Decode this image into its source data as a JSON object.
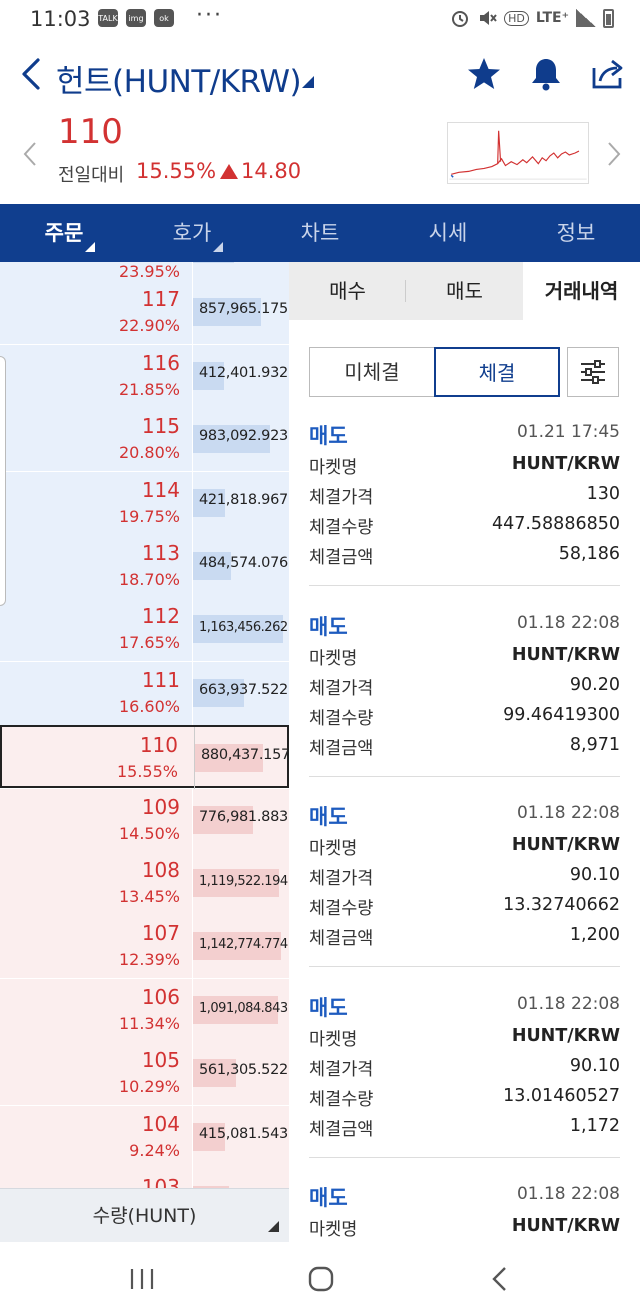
{
  "status_bar": {
    "time": "11:03",
    "app_icons": [
      "TALK",
      "img",
      "ok"
    ],
    "more": "···",
    "network": "LTE⁺",
    "hd": "HD"
  },
  "header": {
    "title": "헌트(HUNT/KRW)",
    "icons": [
      "back-icon",
      "star-icon",
      "bell-icon",
      "share-icon"
    ]
  },
  "price_summary": {
    "price": "110",
    "prev_label": "전일대비",
    "change_pct": "15.55%",
    "change_abs": "14.80"
  },
  "tabs": [
    {
      "label": "주문",
      "active": true
    },
    {
      "label": "호가",
      "active": false
    },
    {
      "label": "차트",
      "active": false
    },
    {
      "label": "시세",
      "active": false
    },
    {
      "label": "정보",
      "active": false
    }
  ],
  "orderbook": {
    "rows": [
      {
        "price": "",
        "pct": "23.95%",
        "qty": "",
        "bar": 0.45,
        "side": "ask",
        "partial": true
      },
      {
        "price": "117",
        "pct": "22.90%",
        "qty": "857,965.175",
        "bar": 0.75,
        "side": "ask"
      },
      {
        "price": "116",
        "pct": "21.85%",
        "qty": "412,401.932",
        "bar": 0.35,
        "side": "ask"
      },
      {
        "price": "115",
        "pct": "20.80%",
        "qty": "983,092.923",
        "bar": 0.86,
        "side": "ask"
      },
      {
        "price": "114",
        "pct": "19.75%",
        "qty": "421,818.967",
        "bar": 0.36,
        "side": "ask"
      },
      {
        "price": "113",
        "pct": "18.70%",
        "qty": "484,574.076",
        "bar": 0.42,
        "side": "ask"
      },
      {
        "price": "112",
        "pct": "17.65%",
        "qty": "1,163,456.262",
        "bar": 1.0,
        "side": "ask"
      },
      {
        "price": "111",
        "pct": "16.60%",
        "qty": "663,937.522",
        "bar": 0.57,
        "side": "ask"
      },
      {
        "price": "110",
        "pct": "15.55%",
        "qty": "880,437.157",
        "bar": 0.76,
        "side": "bid",
        "current": true
      },
      {
        "price": "109",
        "pct": "14.50%",
        "qty": "776,981.883",
        "bar": 0.67,
        "side": "bid"
      },
      {
        "price": "108",
        "pct": "13.45%",
        "qty": "1,119,522.194",
        "bar": 0.96,
        "side": "bid"
      },
      {
        "price": "107",
        "pct": "12.39%",
        "qty": "1,142,774.774",
        "bar": 0.98,
        "side": "bid"
      },
      {
        "price": "106",
        "pct": "11.34%",
        "qty": "1,091,084.843",
        "bar": 0.94,
        "side": "bid"
      },
      {
        "price": "105",
        "pct": "10.29%",
        "qty": "561,305.522",
        "bar": 0.48,
        "side": "bid"
      },
      {
        "price": "104",
        "pct": "9.24%",
        "qty": "415,081.543",
        "bar": 0.36,
        "side": "bid"
      },
      {
        "price": "103",
        "pct": "",
        "qty": "",
        "bar": 0.4,
        "side": "bid",
        "partial": true
      }
    ],
    "footer_label": "수량(HUNT)"
  },
  "trade_panel": {
    "tabs": [
      {
        "label": "매수",
        "active": false
      },
      {
        "label": "매도",
        "active": false
      },
      {
        "label": "거래내역",
        "active": true
      }
    ],
    "segments": [
      {
        "label": "미체결",
        "active": false
      },
      {
        "label": "체결",
        "active": true
      }
    ],
    "field_labels": [
      "마켓명",
      "체결가격",
      "체결수량",
      "체결금액"
    ],
    "trades": [
      {
        "side": "매도",
        "time": "01.21 17:45",
        "market": "HUNT/KRW",
        "price": "130",
        "qty": "447.58886850",
        "amount": "58,186"
      },
      {
        "side": "매도",
        "time": "01.18 22:08",
        "market": "HUNT/KRW",
        "price": "90.20",
        "qty": "99.46419300",
        "amount": "8,971"
      },
      {
        "side": "매도",
        "time": "01.18 22:08",
        "market": "HUNT/KRW",
        "price": "90.10",
        "qty": "13.32740662",
        "amount": "1,200"
      },
      {
        "side": "매도",
        "time": "01.18 22:08",
        "market": "HUNT/KRW",
        "price": "90.10",
        "qty": "13.01460527",
        "amount": "1,172"
      },
      {
        "side": "매도",
        "time": "01.18 22:08",
        "market": "HUNT/KRW",
        "price": "",
        "qty": "",
        "amount": ""
      }
    ]
  },
  "colors": {
    "brand_navy": "#103e8e",
    "up_red": "#d23232",
    "sell_blue": "#1d5bbf",
    "ask_bg": "#e8f0fb",
    "bid_bg": "#fbeeee"
  }
}
